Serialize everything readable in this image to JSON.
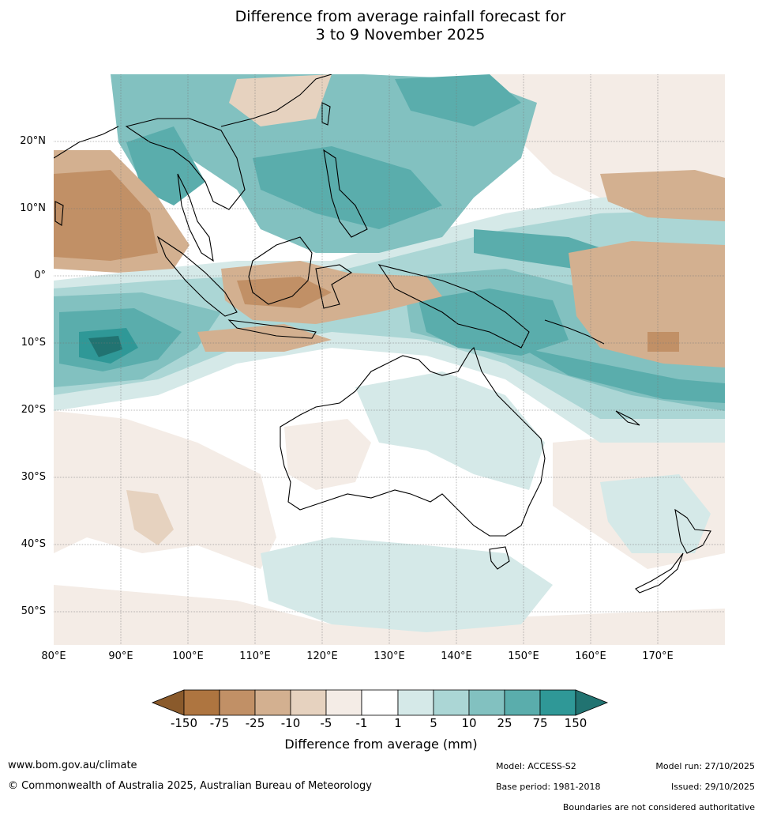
{
  "title": {
    "line1": "Difference from average rainfall forecast for",
    "line2": "3 to 9 November 2025"
  },
  "map": {
    "lat_labels": [
      "20°N",
      "10°N",
      "0°",
      "10°S",
      "20°S",
      "30°S",
      "40°S",
      "50°S"
    ],
    "lon_labels": [
      "80°E",
      "90°E",
      "100°E",
      "110°E",
      "120°E",
      "130°E",
      "140°E",
      "150°E",
      "160°E",
      "170°E"
    ]
  },
  "colorbar": {
    "ticks": [
      "-150",
      "-75",
      "-25",
      "-10",
      "-5",
      "-1",
      "1",
      "5",
      "10",
      "25",
      "75",
      "150"
    ],
    "colors": {
      "lt_neg150": "#8a5a2b",
      "neg150_neg75": "#ae7540",
      "neg75_neg25": "#c19066",
      "neg25_neg10": "#d3b090",
      "neg10_neg5": "#e6d2bf",
      "neg5_neg1": "#f4ece6",
      "neutral": "#ffffff",
      "pos1_pos5": "#d5e9e8",
      "pos5_pos10": "#abd6d5",
      "pos10_pos25": "#82c1c0",
      "pos25_pos75": "#5aadac",
      "pos75_pos150": "#2f9897",
      "gt_pos150": "#217371"
    },
    "label": "Difference from average (mm)"
  },
  "footer": {
    "website": "www.bom.gov.au/climate",
    "copyright": "© Commonwealth of Australia 2025, Australian Bureau of Meteorology",
    "model": "Model: ACCESS-S2",
    "base_period": "Base period: 1981-2018",
    "model_run": "Model run: 27/10/2025",
    "issued": "Issued: 29/10/2025",
    "disclaimer": "Boundaries are not considered authoritative"
  }
}
